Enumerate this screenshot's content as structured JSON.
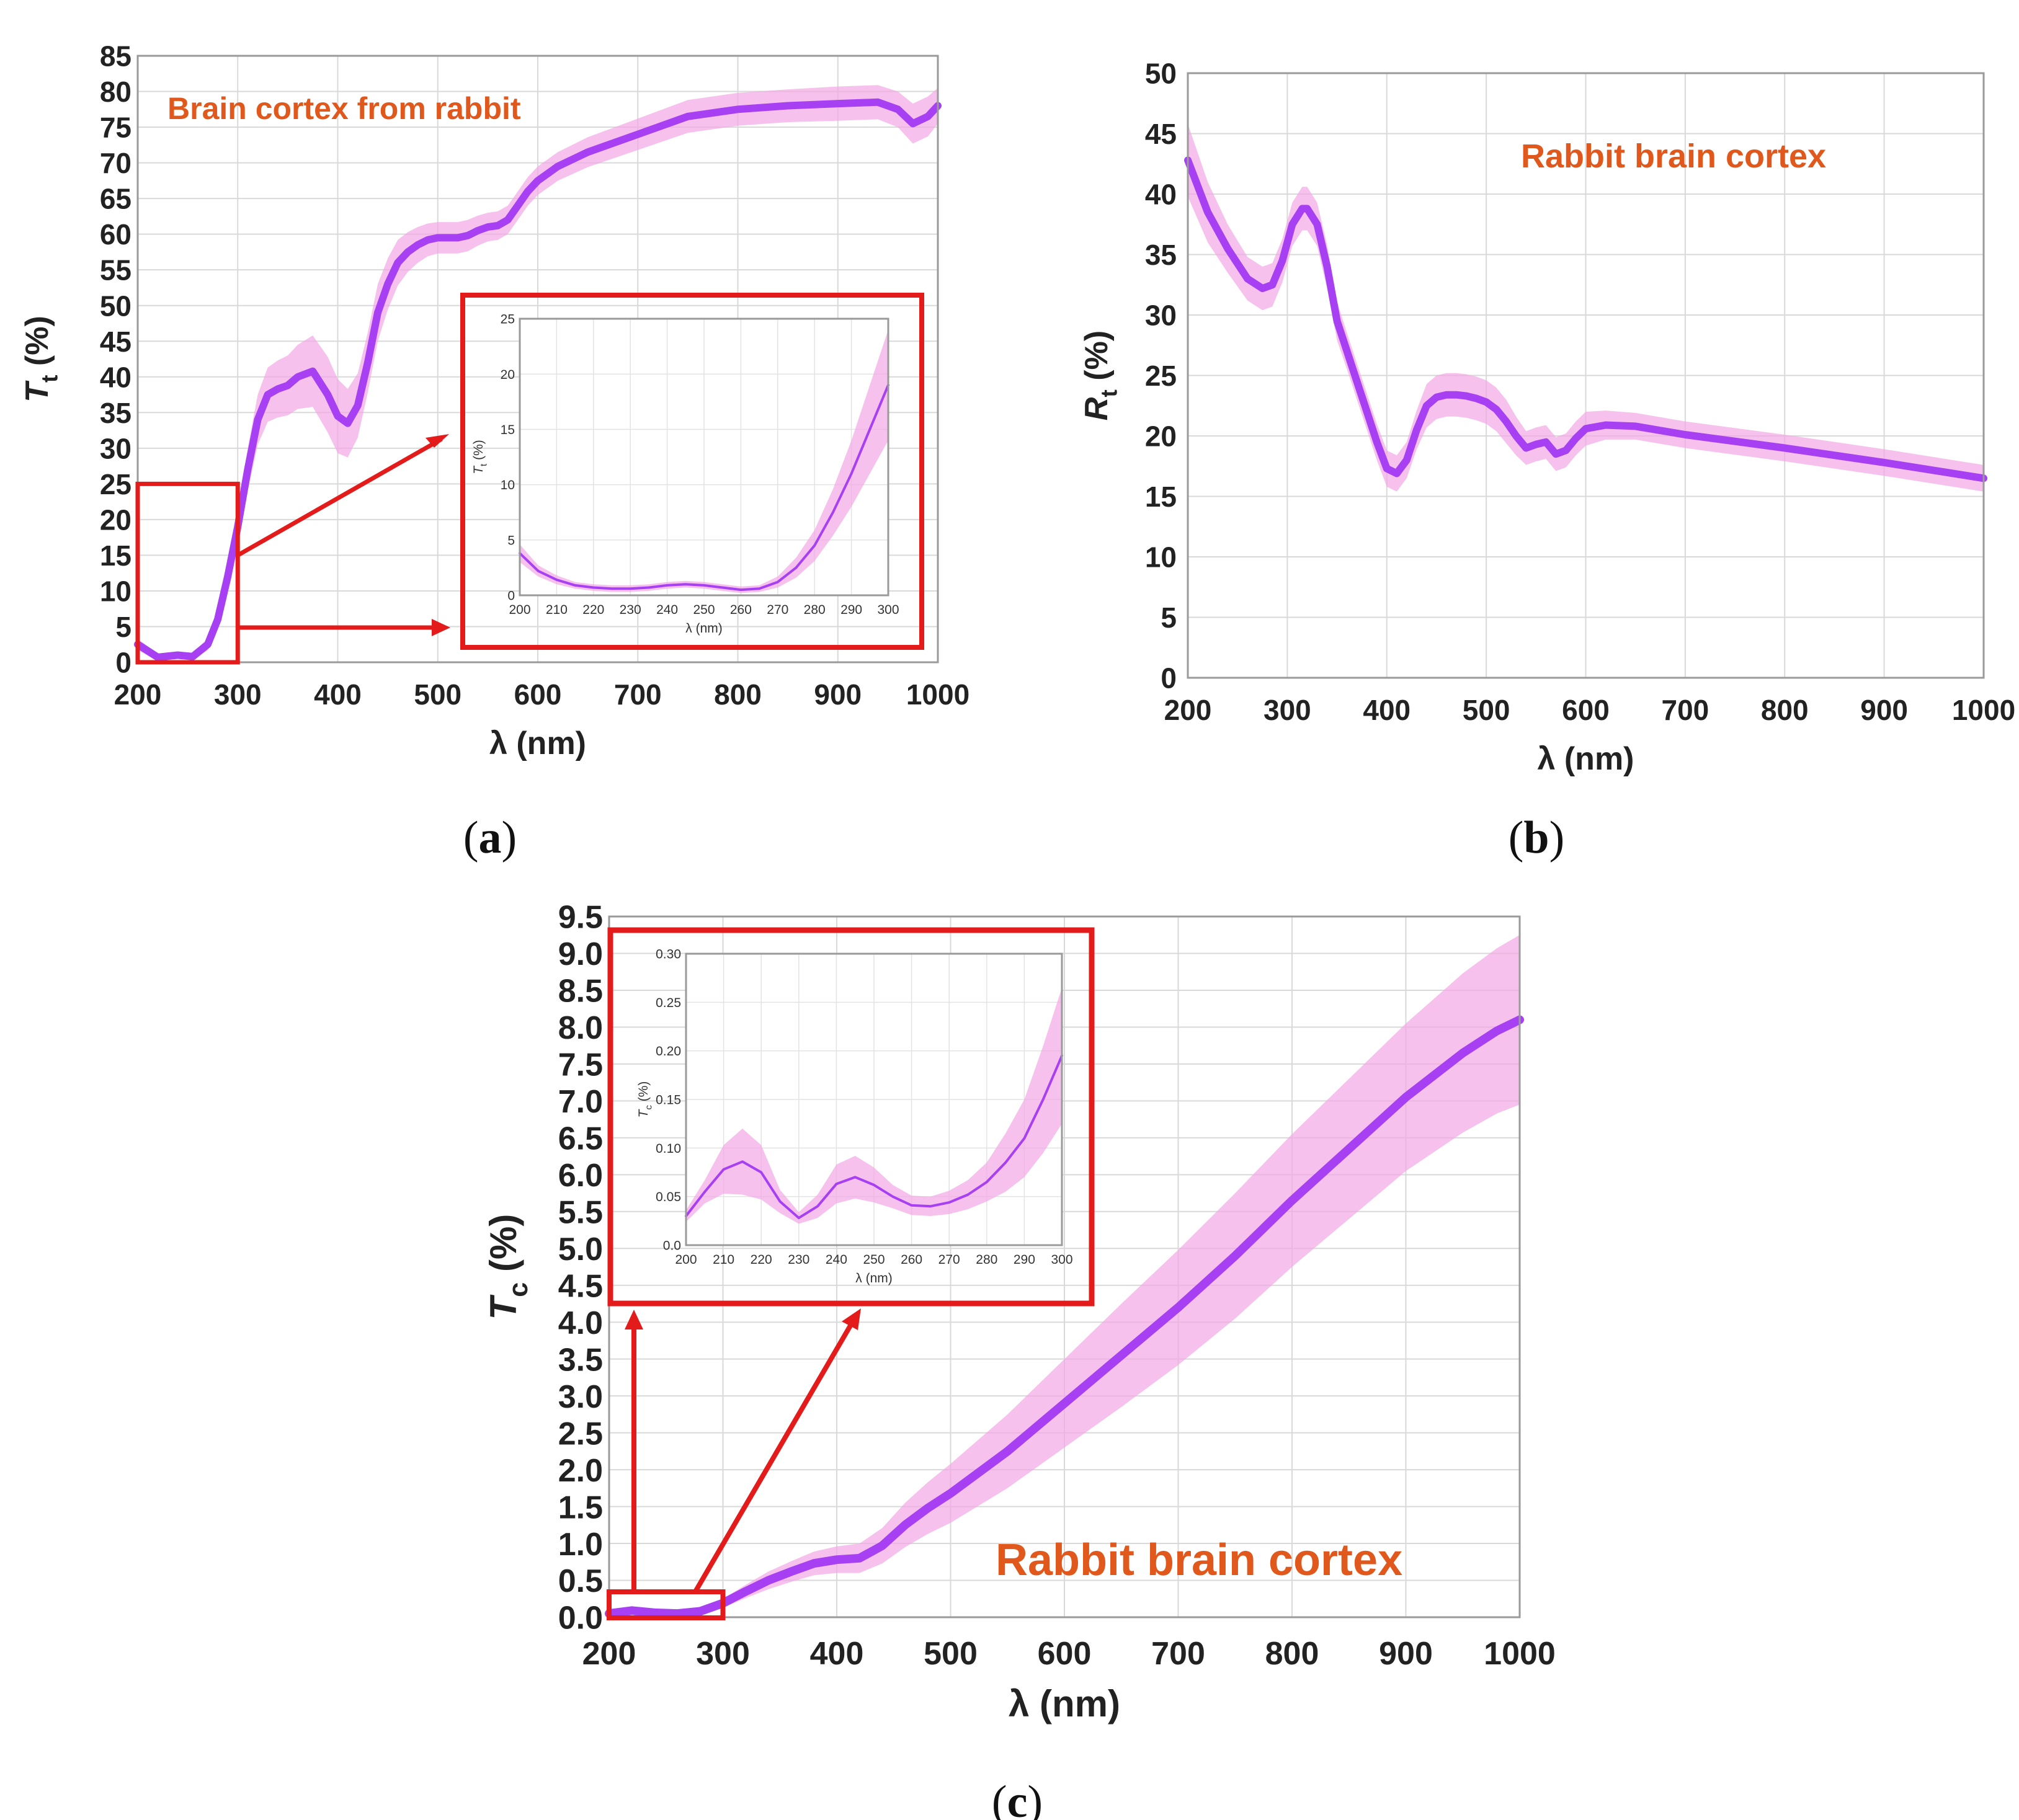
{
  "captions": {
    "a": "a",
    "b": "b",
    "c": "c"
  },
  "colors": {
    "mean_line": "#a640f2",
    "band": "#f2a6e4",
    "annotation": "#e0581c",
    "highlight": "#e41b1b"
  },
  "chart_data": [
    {
      "id": "a",
      "type": "line",
      "title": "",
      "annotation": "Brain cortex from rabbit",
      "xlabel": "λ (nm)",
      "ylabel_main": "T",
      "ylabel_sub": "t",
      "ylabel_unit": " (%)",
      "xlim": [
        200,
        1000
      ],
      "ylim": [
        0,
        85
      ],
      "xticks": [
        200,
        300,
        400,
        500,
        600,
        700,
        800,
        900,
        1000
      ],
      "yticks": [
        0,
        5,
        10,
        15,
        20,
        25,
        30,
        35,
        40,
        45,
        50,
        55,
        60,
        65,
        70,
        75,
        80,
        85
      ],
      "grid": true,
      "series": [
        {
          "name": "Tt mean",
          "x": [
            200,
            220,
            240,
            255,
            270,
            280,
            290,
            300,
            310,
            320,
            330,
            340,
            350,
            360,
            375,
            390,
            400,
            410,
            420,
            430,
            440,
            450,
            460,
            470,
            480,
            490,
            500,
            510,
            520,
            530,
            540,
            550,
            560,
            570,
            580,
            590,
            600,
            620,
            650,
            700,
            750,
            800,
            850,
            900,
            940,
            960,
            975,
            990,
            1000
          ],
          "y": [
            2.5,
            0.7,
            1.0,
            0.8,
            2.5,
            6,
            12,
            19,
            27,
            34,
            37.5,
            38.3,
            38.8,
            40,
            40.8,
            37.5,
            34.5,
            33.5,
            36,
            42,
            49,
            53,
            56,
            57.5,
            58.5,
            59.2,
            59.5,
            59.5,
            59.5,
            59.8,
            60.5,
            61,
            61.2,
            62,
            64,
            66,
            67.5,
            69.5,
            71.5,
            74,
            76.5,
            77.5,
            78,
            78.3,
            78.5,
            77.5,
            75.5,
            76.5,
            78
          ],
          "band": [
            0.8,
            0.5,
            0.5,
            0.5,
            0.8,
            1.2,
            1.8,
            2.5,
            3,
            3.5,
            3.8,
            4,
            4.2,
            4.5,
            5,
            5.3,
            5.2,
            4.8,
            4.5,
            4.2,
            4,
            3.6,
            3.2,
            2.8,
            2.5,
            2.3,
            2.2,
            2.2,
            2.2,
            2.2,
            2.1,
            2,
            2,
            2,
            2,
            2,
            2,
            2,
            2.1,
            2.2,
            2.3,
            2.3,
            2.3,
            2.4,
            2.4,
            2.5,
            2.8,
            2.8,
            2.5
          ]
        }
      ],
      "inset": {
        "xlabel": "λ (nm)",
        "ylabel_main": "T",
        "ylabel_sub": "t",
        "ylabel_unit": " (%)",
        "xlim": [
          200,
          300
        ],
        "ylim": [
          0,
          25
        ],
        "xticks": [
          200,
          210,
          220,
          230,
          240,
          250,
          260,
          270,
          280,
          290,
          300
        ],
        "yticks": [
          0,
          5,
          10,
          15,
          20,
          25
        ],
        "series": [
          {
            "x": [
              200,
              205,
              210,
              215,
              220,
              225,
              230,
              235,
              240,
              245,
              250,
              255,
              260,
              265,
              270,
              275,
              280,
              285,
              290,
              295,
              300
            ],
            "y": [
              3.8,
              2.2,
              1.4,
              0.9,
              0.7,
              0.6,
              0.6,
              0.7,
              0.9,
              1.0,
              0.9,
              0.7,
              0.5,
              0.6,
              1.2,
              2.5,
              4.5,
              7.5,
              11,
              15,
              19
            ],
            "band": [
              0.8,
              0.5,
              0.4,
              0.3,
              0.3,
              0.3,
              0.3,
              0.3,
              0.3,
              0.3,
              0.3,
              0.3,
              0.3,
              0.3,
              0.5,
              0.9,
              1.4,
              2.1,
              3,
              4,
              5
            ]
          }
        ]
      }
    },
    {
      "id": "b",
      "type": "line",
      "title": "",
      "annotation": "Rabbit brain cortex",
      "xlabel": "λ (nm)",
      "ylabel_main": "R",
      "ylabel_sub": "t",
      "ylabel_unit": " (%)",
      "xlim": [
        200,
        1000
      ],
      "ylim": [
        0,
        50
      ],
      "xticks": [
        200,
        300,
        400,
        500,
        600,
        700,
        800,
        900,
        1000
      ],
      "yticks": [
        0,
        5,
        10,
        15,
        20,
        25,
        30,
        35,
        40,
        45,
        50
      ],
      "grid": true,
      "series": [
        {
          "name": "Rt mean",
          "x": [
            200,
            220,
            240,
            260,
            275,
            285,
            295,
            305,
            315,
            320,
            330,
            340,
            350,
            360,
            370,
            380,
            390,
            400,
            410,
            420,
            430,
            440,
            450,
            460,
            470,
            480,
            490,
            500,
            510,
            520,
            530,
            540,
            550,
            560,
            570,
            580,
            590,
            600,
            620,
            650,
            700,
            800,
            900,
            1000
          ],
          "y": [
            42.8,
            38.5,
            35.5,
            33,
            32.2,
            32.5,
            34.5,
            37.5,
            38.8,
            38.8,
            37.5,
            34,
            29.5,
            27,
            24.5,
            22,
            19.5,
            17.3,
            16.9,
            18,
            20.5,
            22.5,
            23.2,
            23.4,
            23.4,
            23.3,
            23.1,
            22.8,
            22.2,
            21.2,
            20,
            19,
            19.3,
            19.5,
            18.5,
            18.8,
            19.8,
            20.6,
            20.9,
            20.8,
            20.1,
            19,
            17.8,
            16.5
          ],
          "band": [
            3,
            2.5,
            2,
            1.8,
            1.8,
            1.8,
            1.8,
            1.8,
            1.8,
            1.8,
            1.8,
            1.8,
            1.6,
            1.5,
            1.5,
            1.5,
            1.5,
            1.5,
            1.5,
            1.5,
            1.6,
            1.8,
            1.8,
            1.8,
            1.8,
            1.8,
            1.8,
            1.8,
            1.8,
            1.8,
            1.6,
            1.4,
            1.4,
            1.4,
            1.4,
            1.4,
            1.4,
            1.4,
            1.2,
            1.1,
            1.1,
            1.1,
            1.1,
            1.1
          ]
        }
      ]
    },
    {
      "id": "c",
      "type": "line",
      "title": "",
      "annotation": "Rabbit brain cortex",
      "xlabel": "λ (nm)",
      "ylabel_main": "T",
      "ylabel_sub": "c",
      "ylabel_unit": " (%)",
      "xlim": [
        200,
        1000
      ],
      "ylim": [
        0,
        9.5
      ],
      "xticks": [
        200,
        300,
        400,
        500,
        600,
        700,
        800,
        900,
        1000
      ],
      "yticks": [
        "0.0",
        "0.5",
        "1.0",
        "1.5",
        "2.0",
        "2.5",
        "3.0",
        "3.5",
        "4.0",
        "4.5",
        "5.0",
        "5.5",
        "6.0",
        "6.5",
        "7.0",
        "7.5",
        "8.0",
        "8.5",
        "9.0",
        "9.5"
      ],
      "grid": true,
      "series": [
        {
          "name": "Tc mean",
          "x": [
            200,
            220,
            240,
            260,
            280,
            300,
            320,
            340,
            360,
            380,
            400,
            420,
            440,
            460,
            480,
            500,
            550,
            600,
            650,
            700,
            750,
            800,
            850,
            900,
            950,
            980,
            1000
          ],
          "y": [
            0.05,
            0.09,
            0.06,
            0.05,
            0.08,
            0.19,
            0.35,
            0.5,
            0.62,
            0.73,
            0.78,
            0.8,
            0.97,
            1.25,
            1.48,
            1.68,
            2.25,
            2.9,
            3.55,
            4.2,
            4.9,
            5.65,
            6.35,
            7.05,
            7.65,
            7.95,
            8.1
          ],
          "band": [
            0.02,
            0.03,
            0.03,
            0.02,
            0.03,
            0.06,
            0.09,
            0.12,
            0.14,
            0.16,
            0.18,
            0.2,
            0.24,
            0.3,
            0.35,
            0.4,
            0.5,
            0.6,
            0.7,
            0.78,
            0.85,
            0.9,
            0.95,
            1.0,
            1.08,
            1.12,
            1.15
          ]
        }
      ],
      "inset": {
        "xlabel": "λ (nm)",
        "ylabel_main": "T",
        "ylabel_sub": "c",
        "ylabel_unit": " (%)",
        "xlim": [
          200,
          300
        ],
        "ylim": [
          0,
          0.3
        ],
        "xticks": [
          200,
          210,
          220,
          230,
          240,
          250,
          260,
          270,
          280,
          290,
          300
        ],
        "yticks": [
          "0.0",
          "0.05",
          "0.10",
          "0.15",
          "0.20",
          "0.25",
          "0.30"
        ],
        "series": [
          {
            "x": [
              200,
              205,
              210,
              215,
              220,
              225,
              230,
              235,
              240,
              245,
              250,
              255,
              260,
              265,
              270,
              275,
              280,
              285,
              290,
              295,
              300
            ],
            "y": [
              0.03,
              0.055,
              0.078,
              0.086,
              0.075,
              0.045,
              0.028,
              0.04,
              0.063,
              0.07,
              0.062,
              0.05,
              0.041,
              0.04,
              0.044,
              0.052,
              0.065,
              0.085,
              0.11,
              0.15,
              0.195
            ],
            "band": [
              0.006,
              0.012,
              0.025,
              0.034,
              0.028,
              0.012,
              0.006,
              0.012,
              0.02,
              0.022,
              0.018,
              0.012,
              0.01,
              0.01,
              0.012,
              0.015,
              0.02,
              0.03,
              0.04,
              0.055,
              0.07
            ]
          }
        ]
      }
    }
  ]
}
